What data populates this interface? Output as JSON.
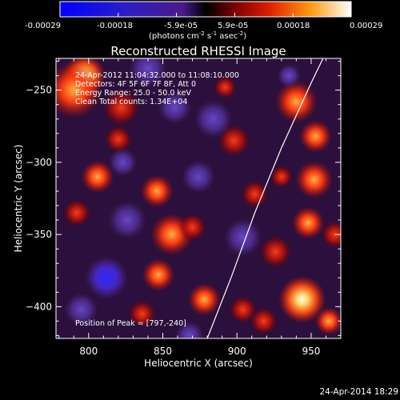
{
  "colorbar": {
    "ticks": [
      "-0.00029",
      "-0.00018",
      "-5.9e-05",
      "5.9e-05",
      "0.00018",
      "0.00029"
    ],
    "units_main": "(photons cm",
    "units_exp1": "-2",
    "units_mid": " s",
    "units_exp2": "-1",
    "units_end": " asec",
    "units_exp3": "-2",
    "units_close": ")"
  },
  "chart_data": {
    "type": "heatmap",
    "title": "Reconstructed RHESSI Image",
    "xlabel": "Heliocentric X (arcsec)",
    "ylabel": "Heliocentric Y (arcsec)",
    "xlim": [
      778,
      970
    ],
    "ylim": [
      -422,
      -228
    ],
    "xticks": [
      800,
      850,
      900,
      950
    ],
    "yticks": [
      -250,
      -300,
      -350,
      -400
    ],
    "colorbar_range": [
      -0.00029,
      0.00029
    ],
    "annotations": [
      "24-Apr-2012 11:04:32.000 to 11:08:10.000",
      "Detectors: 4F 5F 6F 7F 8F, Att 0",
      "Energy Range: 25.0 - 50.0 keV",
      "Clean     Total counts: 1.34E+04"
    ],
    "peak_label": "Position of Peak = [797,-240]",
    "peak_position": [
      797,
      -240
    ],
    "limb_curve": [
      [
        880,
        -422
      ],
      [
        896,
        -380
      ],
      [
        912,
        -335
      ],
      [
        930,
        -290
      ],
      [
        950,
        -245
      ],
      [
        958,
        -228
      ]
    ],
    "blobs": [
      [
        797,
        -240,
        9,
        1.0
      ],
      [
        790,
        -250,
        12,
        0.7
      ],
      [
        822,
        -262,
        8,
        0.45
      ],
      [
        806,
        -310,
        7,
        0.65
      ],
      [
        820,
        -284,
        6,
        0.35
      ],
      [
        792,
        -335,
        6,
        0.3
      ],
      [
        846,
        -320,
        7,
        0.6
      ],
      [
        856,
        -350,
        9,
        0.7
      ],
      [
        847,
        -378,
        7,
        0.6
      ],
      [
        878,
        -395,
        7,
        0.65
      ],
      [
        870,
        -345,
        6,
        0.45
      ],
      [
        836,
        -405,
        6,
        0.5
      ],
      [
        898,
        -285,
        7,
        0.55
      ],
      [
        912,
        -322,
        6,
        0.45
      ],
      [
        904,
        -402,
        6,
        0.5
      ],
      [
        940,
        -258,
        9,
        0.75
      ],
      [
        953,
        -282,
        7,
        0.6
      ],
      [
        952,
        -312,
        8,
        0.7
      ],
      [
        948,
        -342,
        7,
        0.6
      ],
      [
        926,
        -362,
        7,
        0.55
      ],
      [
        944,
        -395,
        10,
        1.0
      ],
      [
        962,
        -410,
        6,
        0.6
      ],
      [
        918,
        -410,
        6,
        0.5
      ],
      [
        930,
        -310,
        5,
        0.4
      ],
      [
        892,
        -248,
        5,
        0.45
      ],
      [
        966,
        -350,
        6,
        0.55
      ],
      [
        826,
        -340,
        8,
        -0.6
      ],
      [
        812,
        -380,
        9,
        -0.7
      ],
      [
        840,
        -235,
        8,
        -0.55
      ],
      [
        858,
        -262,
        7,
        -0.5
      ],
      [
        884,
        -270,
        8,
        -0.45
      ],
      [
        874,
        -310,
        7,
        -0.4
      ],
      [
        904,
        -352,
        8,
        -0.5
      ],
      [
        823,
        -300,
        6,
        -0.35
      ],
      [
        868,
        -420,
        6,
        -0.4
      ],
      [
        795,
        -402,
        7,
        -0.5
      ],
      [
        935,
        -240,
        5,
        -0.3
      ]
    ]
  },
  "footer": {
    "date": "24-Apr-2014 18:29"
  }
}
